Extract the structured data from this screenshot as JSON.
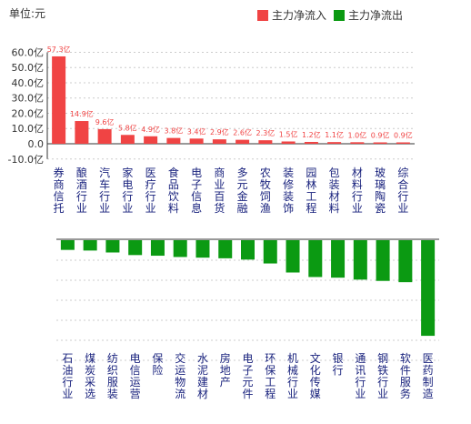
{
  "unit_label": "单位:元",
  "colors": {
    "inflow": "#f04444",
    "outflow": "#0b9a12",
    "axis": "#333333",
    "grid": "#cccccc",
    "label_text": "#1a237e",
    "value_text": "#f04444"
  },
  "chart_data": [
    {
      "type": "bar",
      "series": [
        {
          "name": "主力净流入",
          "role": "inflow"
        },
        {
          "name": "主力净流出",
          "role": "outflow"
        }
      ],
      "legend_position": "top-right",
      "ylim": [
        -10,
        60
      ],
      "yticks": [
        -10,
        0,
        10,
        20,
        30,
        40,
        50,
        60
      ],
      "ytick_labels": [
        "-10.0亿",
        "0.0",
        "10.0亿",
        "20.0亿",
        "30.0亿",
        "40.0亿",
        "50.0亿",
        "60.0亿"
      ],
      "grid": true,
      "categories": [
        "券商信托",
        "酿酒行业",
        "汽车行业",
        "家电行业",
        "医疗行业",
        "食品饮料",
        "电子信息",
        "商业百货",
        "多元金融",
        "农牧饲渔",
        "装修装饰",
        "园林工程",
        "包装材料",
        "材料行业",
        "玻璃陶瓷",
        "综合行业"
      ],
      "values": [
        57.3,
        14.9,
        9.6,
        5.8,
        4.9,
        3.8,
        3.4,
        2.9,
        2.6,
        2.3,
        1.5,
        1.2,
        1.1,
        1.0,
        0.9,
        0.9
      ],
      "data_labels": [
        "57.3亿",
        "14.9亿",
        "9.6亿",
        "5.8亿",
        "4.9亿",
        "3.8亿",
        "3.4亿",
        "2.9亿",
        "2.6亿",
        "2.3亿",
        "1.5亿",
        "1.2亿",
        "1.1亿",
        "1.0亿",
        "0.9亿",
        "0.9亿"
      ]
    },
    {
      "type": "bar",
      "grid": true,
      "categories": [
        "石油行业",
        "煤炭采选",
        "纺织服装",
        "电信运营",
        "保险",
        "交运物流",
        "水泥建材",
        "房地产",
        "电子元件",
        "环保工程",
        "机械行业",
        "文化传媒",
        "银行",
        "通讯行业",
        "钢铁行业",
        "软件服务",
        "医药制造"
      ],
      "values": [
        -1.5,
        -1.6,
        -1.9,
        -2.3,
        -2.4,
        -2.6,
        -2.7,
        -2.8,
        -3.0,
        -3.6,
        -5.0,
        -5.7,
        -5.8,
        -6.1,
        -6.3,
        -6.5,
        -14.8
      ]
    }
  ]
}
